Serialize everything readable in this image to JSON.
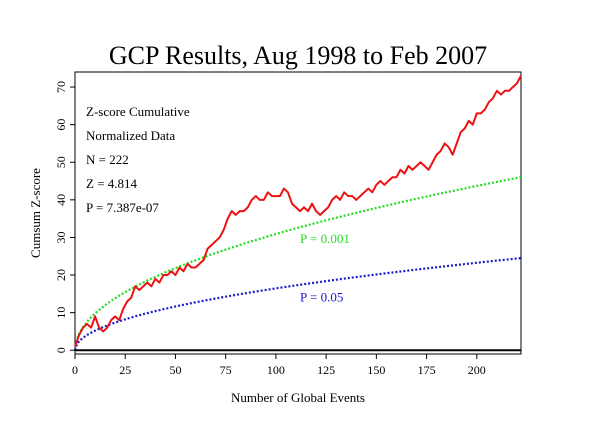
{
  "chart_data": {
    "type": "line",
    "title": "GCP Results, Aug 1998 to Feb 2007",
    "xlabel": "Number of Global Events",
    "ylabel": "Cumsum Z-score",
    "xlim": [
      0,
      222
    ],
    "ylim": [
      -1,
      74
    ],
    "xticks": [
      0,
      25,
      50,
      75,
      100,
      125,
      150,
      175,
      200
    ],
    "yticks": [
      0,
      10,
      20,
      30,
      40,
      50,
      60,
      70
    ],
    "grid": false,
    "annotations": [
      "Z-score Cumulative",
      "Normalized Data",
      "N = 222",
      "Z = 4.814",
      "P = 7.387e-07"
    ],
    "reference_lines": [
      {
        "label": "P = 0.001",
        "z": 3.09,
        "color": "#22dd22",
        "style": "dotted",
        "label_at": [
          112,
          28.5
        ]
      },
      {
        "label": "P = 0.05",
        "z": 1.645,
        "color": "#1a1acc",
        "style": "dotted",
        "label_at": [
          112,
          13
        ]
      }
    ],
    "series": [
      {
        "color": "#ee1111",
        "x": [
          0,
          2,
          4,
          6,
          8,
          10,
          12,
          14,
          16,
          18,
          20,
          22,
          24,
          26,
          28,
          30,
          32,
          34,
          36,
          38,
          40,
          42,
          44,
          46,
          48,
          50,
          52,
          54,
          56,
          58,
          60,
          62,
          64,
          66,
          68,
          70,
          72,
          74,
          76,
          78,
          80,
          82,
          84,
          86,
          88,
          90,
          92,
          94,
          96,
          98,
          100,
          102,
          104,
          106,
          108,
          110,
          112,
          114,
          116,
          118,
          120,
          122,
          124,
          126,
          128,
          130,
          132,
          134,
          136,
          138,
          140,
          142,
          144,
          146,
          148,
          150,
          152,
          154,
          156,
          158,
          160,
          162,
          164,
          166,
          168,
          170,
          172,
          174,
          176,
          178,
          180,
          182,
          184,
          186,
          188,
          190,
          192,
          194,
          196,
          198,
          200,
          202,
          204,
          206,
          208,
          210,
          212,
          214,
          216,
          218,
          220,
          222
        ],
        "y": [
          1,
          4,
          6,
          7,
          6,
          9,
          6,
          5,
          6,
          8,
          9,
          8,
          11,
          13,
          14,
          17,
          16,
          17,
          18,
          17,
          19,
          18,
          20,
          20,
          21,
          20,
          22,
          21,
          23,
          22,
          22,
          23,
          24,
          27,
          28,
          29,
          30,
          32,
          35,
          37,
          36,
          37,
          37,
          38,
          40,
          41,
          40,
          40,
          42,
          41,
          41,
          41,
          43,
          42,
          39,
          38,
          37,
          38,
          37,
          39,
          37,
          36,
          37,
          38,
          40,
          41,
          40,
          42,
          41,
          41,
          40,
          41,
          42,
          43,
          42,
          44,
          45,
          44,
          45,
          46,
          46,
          48,
          47,
          49,
          48,
          49,
          50,
          49,
          48,
          50,
          52,
          53,
          55,
          54,
          52,
          55,
          58,
          59,
          61,
          60,
          63,
          63,
          64,
          66,
          67,
          69,
          68,
          69,
          69,
          70,
          71,
          73
        ]
      }
    ]
  }
}
